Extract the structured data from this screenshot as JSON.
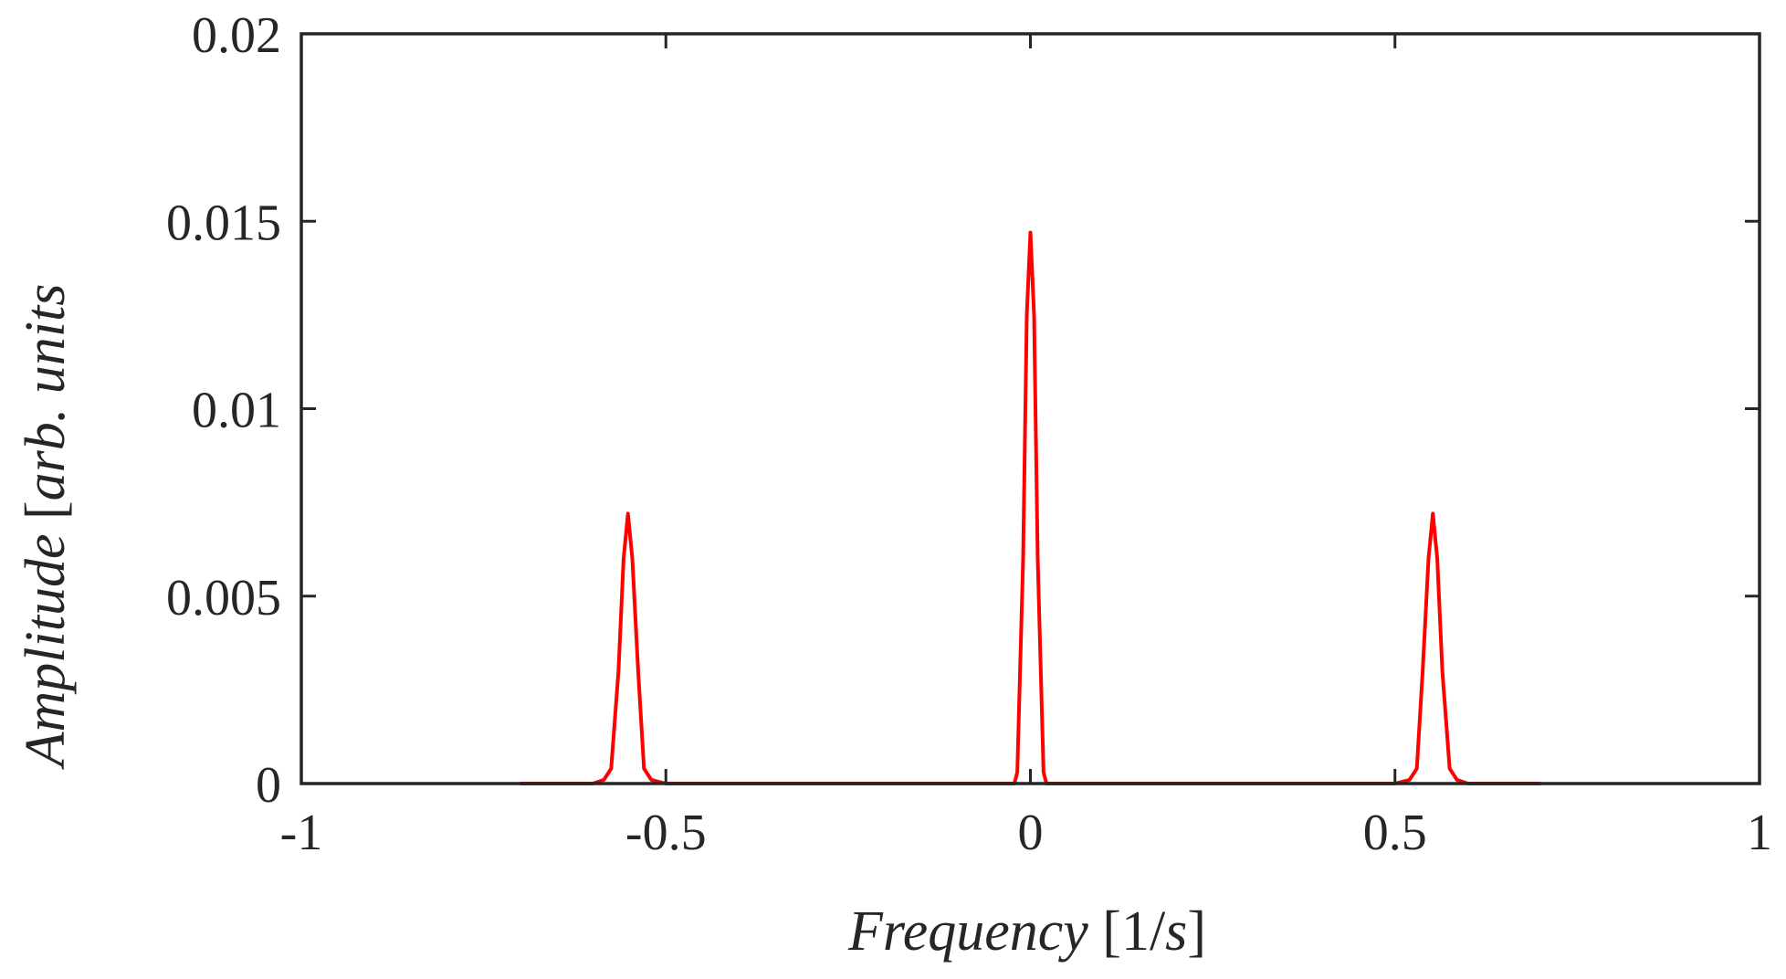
{
  "chart_data": {
    "type": "line",
    "title": "",
    "xlabel": {
      "parts": [
        {
          "text": "Frequency",
          "italic": true
        },
        {
          "text": " [1/",
          "italic": false
        },
        {
          "text": "s",
          "italic": true
        },
        {
          "text": "]",
          "italic": false
        }
      ]
    },
    "ylabel": {
      "parts": [
        {
          "text": "Amplitude",
          "italic": true
        },
        {
          "text": " [",
          "italic": false
        },
        {
          "text": "arb. units",
          "italic": true
        }
      ]
    },
    "xlim": [
      -1,
      1
    ],
    "ylim": [
      0,
      0.02
    ],
    "xticks": [
      -1,
      -0.5,
      0,
      0.5,
      1
    ],
    "xtick_labels": [
      "-1",
      "-0.5",
      "0",
      "0.5",
      "1"
    ],
    "yticks": [
      0,
      0.005,
      0.01,
      0.015,
      0.02
    ],
    "ytick_labels": [
      "0",
      "0.005",
      "0.01",
      "0.015",
      "0.02"
    ],
    "grid": false,
    "legend": "none",
    "series": [
      {
        "color": "#ff0000",
        "x": [
          -0.7,
          -0.6,
          -0.585,
          -0.575,
          -0.565,
          -0.558,
          -0.552,
          -0.546,
          -0.538,
          -0.53,
          -0.52,
          -0.5,
          -0.05,
          -0.022,
          -0.018,
          -0.01,
          -0.005,
          0.0,
          0.005,
          0.01,
          0.018,
          0.022,
          0.05,
          0.5,
          0.52,
          0.53,
          0.538,
          0.546,
          0.552,
          0.558,
          0.565,
          0.575,
          0.585,
          0.6,
          0.7
        ],
        "y": [
          0,
          0,
          0.0001,
          0.0004,
          0.003,
          0.006,
          0.0072,
          0.006,
          0.003,
          0.0004,
          0.0001,
          0,
          0,
          0,
          0.0003,
          0.006,
          0.0125,
          0.0147,
          0.0125,
          0.006,
          0.0003,
          0,
          0,
          0,
          0.0001,
          0.0004,
          0.003,
          0.006,
          0.0072,
          0.006,
          0.003,
          0.0004,
          0.0001,
          0,
          0
        ]
      }
    ]
  }
}
